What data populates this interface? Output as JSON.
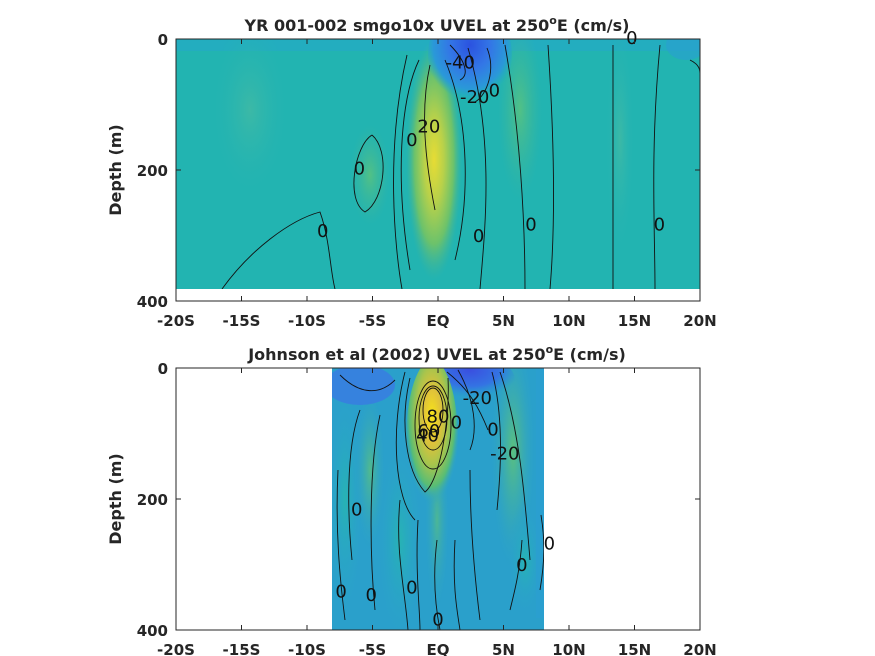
{
  "chart_data": [
    {
      "type": "heatmap",
      "title": "YR 001-002 smgo10x UVEL at 250",
      "title_sup": "o",
      "title_end": "E (cm/s)",
      "ylabel": "Depth (m)",
      "xlabel": "",
      "x_ticks": [
        "-20S",
        "-15S",
        "-10S",
        "-5S",
        "EQ",
        "5N",
        "10N",
        "15N",
        "20N"
      ],
      "x_range": [
        -20,
        20
      ],
      "y_ticks": [
        "0",
        "200",
        "400"
      ],
      "y_range": [
        0,
        400
      ],
      "y_reversed": true,
      "data_extent": {
        "lat": [
          -20,
          20
        ],
        "depth": [
          0,
          380
        ]
      },
      "contour_labels": [
        {
          "text": "0",
          "lat": 14.8,
          "depth": 8
        },
        {
          "text": "-40",
          "lat": 1.7,
          "depth": 45
        },
        {
          "text": "-20",
          "lat": 2.8,
          "depth": 98
        },
        {
          "text": "0",
          "lat": 4.3,
          "depth": 88
        },
        {
          "text": "20",
          "lat": -0.7,
          "depth": 143
        },
        {
          "text": "0",
          "lat": -2.0,
          "depth": 163
        },
        {
          "text": "0",
          "lat": -6.0,
          "depth": 207
        },
        {
          "text": "0",
          "lat": -8.8,
          "depth": 302
        },
        {
          "text": "0",
          "lat": 3.1,
          "depth": 310
        },
        {
          "text": "0",
          "lat": 7.1,
          "depth": 292
        },
        {
          "text": "0",
          "lat": 16.9,
          "depth": 292
        }
      ],
      "features": [
        {
          "kind": "jet",
          "sign": "westward",
          "lat": [
            1.0,
            4.0
          ],
          "depth": [
            0,
            110
          ],
          "value_min": -40
        },
        {
          "kind": "jet",
          "sign": "eastward",
          "lat": [
            -1.5,
            1.0
          ],
          "depth": [
            50,
            240
          ],
          "value_max": 20
        }
      ]
    },
    {
      "type": "heatmap",
      "title": "Johnson et al (2002) UVEL at 250",
      "title_sup": "o",
      "title_end": "E (cm/s)",
      "ylabel": "Depth (m)",
      "xlabel": "",
      "x_ticks": [
        "-20S",
        "-15S",
        "-10S",
        "-5S",
        "EQ",
        "5N",
        "10N",
        "15N",
        "20N"
      ],
      "x_range": [
        -20,
        20
      ],
      "y_ticks": [
        "0",
        "200",
        "400"
      ],
      "y_range": [
        0,
        400
      ],
      "y_reversed": true,
      "data_extent": {
        "lat": [
          -8,
          8.3
        ],
        "depth": [
          0,
          400
        ]
      },
      "contour_labels": [
        {
          "text": "-20",
          "lat": 3.0,
          "depth": 55
        },
        {
          "text": "80",
          "lat": 0.0,
          "depth": 83
        },
        {
          "text": "60",
          "lat": -0.7,
          "depth": 105
        },
        {
          "text": "40",
          "lat": -0.8,
          "depth": 112
        },
        {
          "text": "0",
          "lat": 1.4,
          "depth": 92
        },
        {
          "text": "0",
          "lat": 4.2,
          "depth": 103
        },
        {
          "text": "-20",
          "lat": 5.1,
          "depth": 140
        },
        {
          "text": "0",
          "lat": -6.2,
          "depth": 225
        },
        {
          "text": "0",
          "lat": 8.5,
          "depth": 277
        },
        {
          "text": "0",
          "lat": 6.4,
          "depth": 310
        },
        {
          "text": "0",
          "lat": -7.4,
          "depth": 350
        },
        {
          "text": "0",
          "lat": -5.1,
          "depth": 356
        },
        {
          "text": "0",
          "lat": -2.0,
          "depth": 344
        },
        {
          "text": "0",
          "lat": 0.0,
          "depth": 393
        }
      ],
      "features": [
        {
          "kind": "jet",
          "sign": "eastward",
          "lat": [
            -1.5,
            1.5
          ],
          "depth": [
            10,
            190
          ],
          "value_max": 80
        },
        {
          "kind": "jet",
          "sign": "westward",
          "lat": [
            1.0,
            6.0
          ],
          "depth": [
            0,
            60
          ],
          "value_min": -20
        }
      ]
    }
  ]
}
